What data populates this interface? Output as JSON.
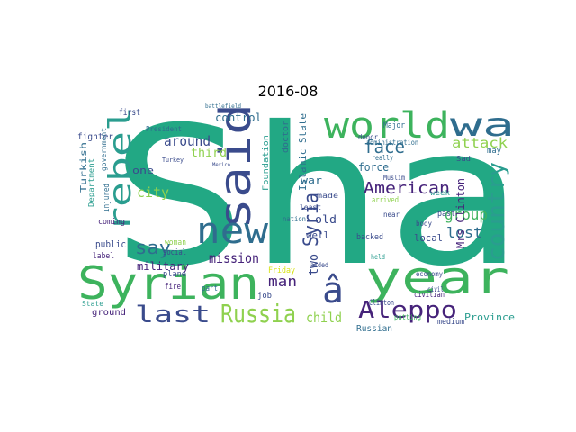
{
  "figure": {
    "title": "2016-08"
  },
  "colors": {
    "teal": "#2a9d8f",
    "green": "#3db35d",
    "purple": "#46237a",
    "indigo": "#3a4b8c",
    "blue": "#2f6d8e",
    "lime": "#8fd14f",
    "yellow": "#d7e219",
    "seafoam": "#22a884"
  },
  "wordcloud": {
    "words": [
      {
        "text": "Sha",
        "color": "seafoam"
      },
      {
        "text": "world",
        "color": "green"
      },
      {
        "text": "wa",
        "color": "blue"
      },
      {
        "text": "said",
        "color": "indigo"
      },
      {
        "text": "new",
        "color": "blue"
      },
      {
        "text": "rebel",
        "color": "teal"
      },
      {
        "text": "Syrian",
        "color": "green"
      },
      {
        "text": "year",
        "color": "green"
      },
      {
        "text": "â",
        "color": "indigo"
      },
      {
        "text": "Russia",
        "color": "lime"
      },
      {
        "text": "last",
        "color": "indigo"
      },
      {
        "text": "Aleppo",
        "color": "purple"
      },
      {
        "text": "country",
        "color": "teal"
      },
      {
        "text": "American",
        "color": "purple"
      },
      {
        "text": "say",
        "color": "blue"
      },
      {
        "text": "Syria",
        "color": "indigo"
      },
      {
        "text": "mission",
        "color": "purple"
      },
      {
        "text": "around",
        "color": "indigo"
      },
      {
        "text": "face",
        "color": "blue"
      },
      {
        "text": "attack",
        "color": "lime"
      },
      {
        "text": "group",
        "color": "green"
      },
      {
        "text": "city",
        "color": "lime"
      },
      {
        "text": "child",
        "color": "lime"
      },
      {
        "text": "lost",
        "color": "blue"
      },
      {
        "text": "man",
        "color": "purple"
      },
      {
        "text": "two",
        "color": "indigo"
      },
      {
        "text": "military",
        "color": "purple"
      },
      {
        "text": "third",
        "color": "lime"
      },
      {
        "text": "control",
        "color": "blue"
      },
      {
        "text": "Islamic State",
        "color": "blue"
      },
      {
        "text": "force",
        "color": "blue"
      },
      {
        "text": "Mrs Clinton",
        "color": "purple"
      },
      {
        "text": "Province",
        "color": "teal"
      },
      {
        "text": "Turkish",
        "color": "blue"
      },
      {
        "text": "public",
        "color": "indigo"
      },
      {
        "text": "one",
        "color": "indigo"
      },
      {
        "text": "war",
        "color": "blue"
      },
      {
        "text": "old",
        "color": "indigo"
      },
      {
        "text": "well",
        "color": "indigo"
      },
      {
        "text": "local",
        "color": "indigo"
      },
      {
        "text": "Russian",
        "color": "blue"
      },
      {
        "text": "ground",
        "color": "purple"
      },
      {
        "text": "fighter",
        "color": "indigo"
      },
      {
        "text": "first",
        "color": "indigo"
      },
      {
        "text": "President",
        "color": "blue"
      },
      {
        "text": "Foundation",
        "color": "teal"
      },
      {
        "text": "doctor",
        "color": "blue"
      },
      {
        "text": "Major",
        "color": "blue"
      },
      {
        "text": "administration",
        "color": "blue"
      },
      {
        "text": "government",
        "color": "blue"
      },
      {
        "text": "Department",
        "color": "teal"
      },
      {
        "text": "injured",
        "color": "blue"
      },
      {
        "text": "coming",
        "color": "purple"
      },
      {
        "text": "label",
        "color": "purple"
      },
      {
        "text": "State",
        "color": "teal"
      },
      {
        "text": "woman",
        "color": "lime"
      },
      {
        "text": "fire",
        "color": "purple"
      },
      {
        "text": "plane",
        "color": "indigo"
      },
      {
        "text": "social",
        "color": "indigo"
      },
      {
        "text": "part",
        "color": "blue"
      },
      {
        "text": "job",
        "color": "indigo"
      },
      {
        "text": "Friday",
        "color": "yellow"
      },
      {
        "text": "nation",
        "color": "blue"
      },
      {
        "text": "least",
        "color": "indigo"
      },
      {
        "text": "made",
        "color": "indigo"
      },
      {
        "text": "arrived",
        "color": "lime"
      },
      {
        "text": "held",
        "color": "teal"
      },
      {
        "text": "backed",
        "color": "indigo"
      },
      {
        "text": "Clinton",
        "color": "indigo"
      },
      {
        "text": "civilian",
        "color": "purple"
      },
      {
        "text": "putting",
        "color": "green"
      },
      {
        "text": "medium",
        "color": "indigo"
      },
      {
        "text": "week",
        "color": "teal"
      },
      {
        "text": "may",
        "color": "blue"
      },
      {
        "text": "past",
        "color": "indigo"
      },
      {
        "text": "body",
        "color": "indigo"
      },
      {
        "text": "near",
        "color": "indigo"
      },
      {
        "text": "airstrike",
        "color": "seafoam"
      },
      {
        "text": "Muslim",
        "color": "indigo"
      },
      {
        "text": "really",
        "color": "blue"
      },
      {
        "text": "donor",
        "color": "indigo"
      },
      {
        "text": "civil",
        "color": "indigo"
      },
      {
        "text": "economy",
        "color": "indigo"
      },
      {
        "text": "aided",
        "color": "indigo"
      },
      {
        "text": "Sad",
        "color": "indigo"
      },
      {
        "text": "battlefield",
        "color": "blue"
      },
      {
        "text": "Turkey",
        "color": "indigo"
      },
      {
        "text": "Mexico",
        "color": "indigo"
      }
    ]
  }
}
